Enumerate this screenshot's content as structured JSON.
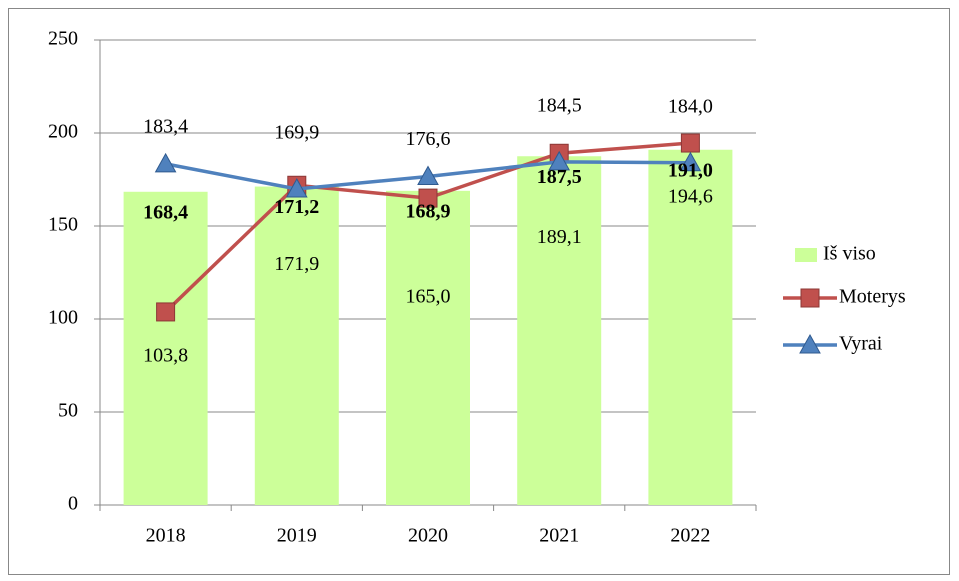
{
  "chart_data": {
    "type": "bar_line",
    "categories": [
      "2018",
      "2019",
      "2020",
      "2021",
      "2022"
    ],
    "series": [
      {
        "name": "Iš viso",
        "kind": "bar",
        "color": "#ccff99",
        "values": [
          168.4,
          171.2,
          168.9,
          187.5,
          191.0
        ],
        "value_labels": [
          "168,4",
          "171,2",
          "168,9",
          "187,5",
          "191,0"
        ]
      },
      {
        "name": "Moterys",
        "kind": "line",
        "marker": "square",
        "color": "#c0504d",
        "values": [
          103.8,
          171.9,
          165.0,
          189.1,
          194.6
        ],
        "value_labels": [
          "103,8",
          "171,9",
          "165,0",
          "189,1",
          "194,6"
        ]
      },
      {
        "name": "Vyrai",
        "kind": "line",
        "marker": "triangle",
        "color": "#4f81bd",
        "values": [
          183.4,
          169.9,
          176.6,
          184.5,
          184.0
        ],
        "value_labels": [
          "183,4",
          "169,9",
          "176,6",
          "184,5",
          "184,0"
        ]
      }
    ],
    "ylim": [
      0,
      250
    ],
    "yticks": [
      0,
      50,
      100,
      150,
      200,
      250
    ],
    "grid": true,
    "legend": "right"
  }
}
